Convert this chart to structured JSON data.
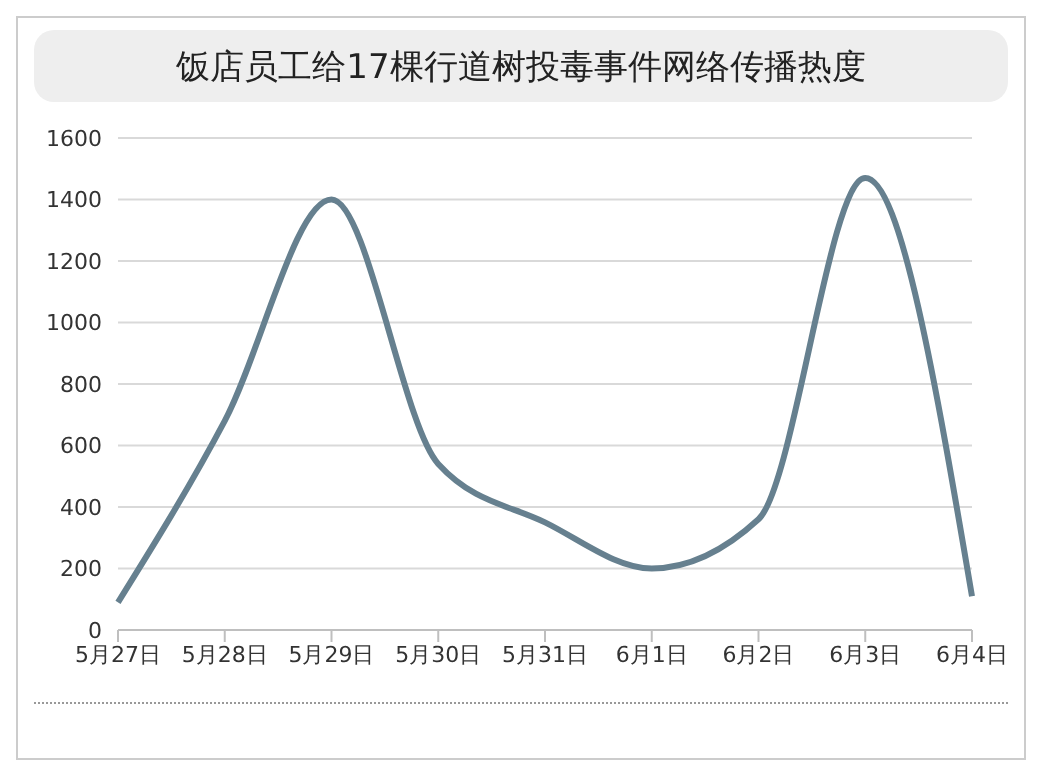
{
  "chart_data": {
    "type": "line",
    "title": "饭店员工给17棵行道树投毒事件网络传播热度",
    "categories": [
      "5月27日",
      "5月28日",
      "5月29日",
      "5月30日",
      "5月31日",
      "6月1日",
      "6月2日",
      "6月3日",
      "6月4日"
    ],
    "series": [
      {
        "color": "#66808f",
        "values": [
          90,
          680,
          1400,
          540,
          350,
          200,
          360,
          1470,
          110
        ]
      }
    ],
    "ylim": [
      0,
      1600
    ],
    "yticks": [
      0,
      200,
      400,
      600,
      800,
      1000,
      1200,
      1400,
      1600
    ],
    "grid": "y",
    "legend": false,
    "marker": "none",
    "line_style": "solid"
  }
}
